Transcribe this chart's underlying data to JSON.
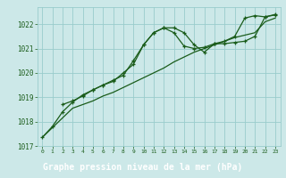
{
  "xlabel": "Graphe pression niveau de la mer (hPa)",
  "bg_color": "#cce8e8",
  "grid_color": "#99cccc",
  "line_color": "#1a5c1a",
  "marker_color": "#1a5c1a",
  "xlabel_bg": "#3a7a3a",
  "xlabel_fg": "#ffffff",
  "ylim": [
    1017.0,
    1022.7
  ],
  "yticks": [
    1017,
    1018,
    1019,
    1020,
    1021,
    1022
  ],
  "xlim": [
    -0.5,
    23.5
  ],
  "xticks": [
    0,
    1,
    2,
    3,
    4,
    5,
    6,
    7,
    8,
    9,
    10,
    11,
    12,
    13,
    14,
    15,
    16,
    17,
    18,
    19,
    20,
    21,
    22,
    23
  ],
  "line1_x": [
    0,
    1,
    2,
    3,
    4,
    5,
    6,
    7,
    8,
    9,
    10,
    11,
    12,
    13,
    14,
    15,
    16,
    17,
    18,
    19,
    20,
    21,
    22,
    23
  ],
  "line1_y": [
    1017.35,
    1017.8,
    1018.4,
    1018.8,
    1019.1,
    1019.3,
    1019.5,
    1019.7,
    1019.9,
    1020.5,
    1021.15,
    1021.65,
    1021.85,
    1021.85,
    1021.65,
    1021.15,
    1020.85,
    1021.2,
    1021.2,
    1021.25,
    1021.3,
    1021.5,
    1022.3,
    1022.4
  ],
  "line2_x": [
    0,
    1,
    2,
    3,
    4,
    5,
    6,
    7,
    8,
    9,
    10,
    11,
    12,
    13,
    14,
    15,
    16,
    17,
    18,
    19,
    20,
    21,
    22,
    23
  ],
  "line2_y": [
    1017.35,
    1017.75,
    1018.15,
    1018.55,
    1018.7,
    1018.85,
    1019.05,
    1019.2,
    1019.4,
    1019.6,
    1019.8,
    1020.0,
    1020.2,
    1020.45,
    1020.65,
    1020.85,
    1021.0,
    1021.15,
    1021.3,
    1021.45,
    1021.55,
    1021.65,
    1022.1,
    1022.25
  ],
  "line3_x": [
    2,
    3,
    4,
    5,
    6,
    7,
    8,
    9,
    10,
    11,
    12,
    13,
    14,
    15,
    16,
    17,
    18,
    19,
    20,
    21,
    22,
    23
  ],
  "line3_y": [
    1018.7,
    1018.85,
    1019.05,
    1019.3,
    1019.5,
    1019.65,
    1020.0,
    1020.35,
    1021.15,
    1021.65,
    1021.85,
    1021.65,
    1021.1,
    1021.0,
    1021.05,
    1021.2,
    1021.3,
    1021.5,
    1022.25,
    1022.35,
    1022.3,
    1022.38
  ]
}
